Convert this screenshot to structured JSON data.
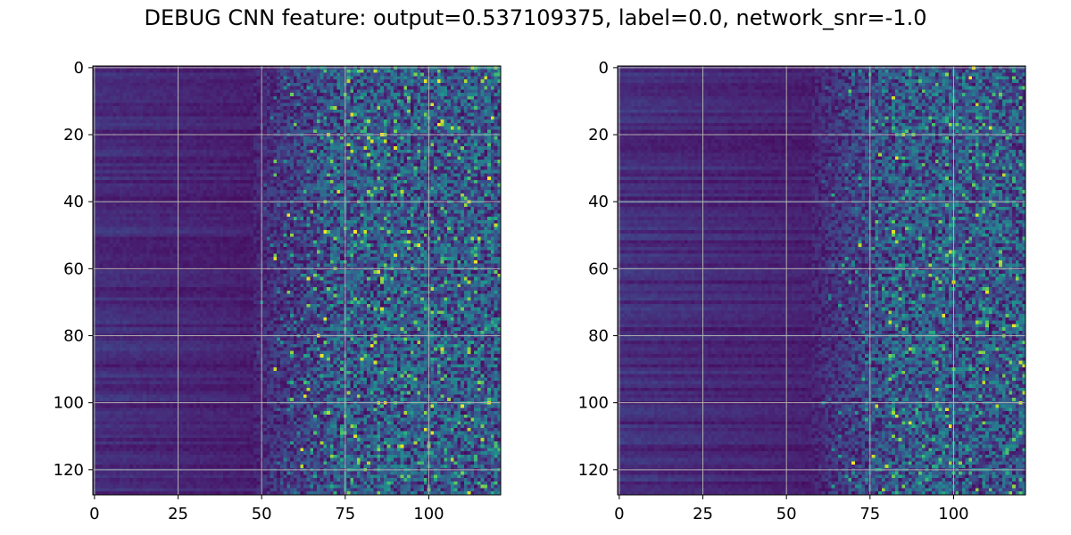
{
  "figure": {
    "title": "DEBUG CNN feature: output=0.537109375, label=0.0, network_snr=-1.0"
  },
  "chart_data": [
    {
      "type": "heatmap",
      "colormap": "viridis",
      "grid": true,
      "rows": 128,
      "cols": 122,
      "xlim": [
        -0.5,
        121.5
      ],
      "ylim": [
        127.5,
        -0.5
      ],
      "xticks": [
        0,
        25,
        50,
        75,
        100
      ],
      "yticks": [
        0,
        20,
        40,
        60,
        80,
        100,
        120
      ],
      "value_range": [
        0,
        1
      ],
      "pattern": "low, horizontally banded values for columns 0-50; increasingly noisy, higher values for columns 50-121 with scattered bright cells"
    },
    {
      "type": "heatmap",
      "colormap": "viridis",
      "grid": true,
      "rows": 128,
      "cols": 122,
      "xlim": [
        -0.5,
        121.5
      ],
      "ylim": [
        127.5,
        -0.5
      ],
      "xticks": [
        0,
        25,
        50,
        75,
        100
      ],
      "yticks": [
        0,
        20,
        40,
        60,
        80,
        100,
        120
      ],
      "value_range": [
        0,
        1
      ],
      "pattern": "low, horizontally banded values for columns 0-60; moderately noisy values for columns 60-121 with fewer bright cells"
    }
  ],
  "colors": {
    "viridis_low": "#440154",
    "viridis_mid": "#21918c",
    "viridis_high": "#fde725",
    "grid": "#b0b0b0"
  }
}
